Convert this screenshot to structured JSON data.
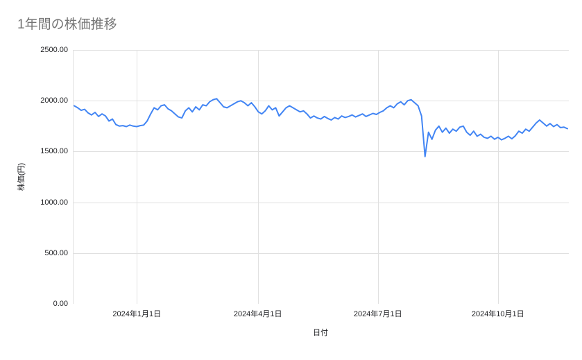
{
  "title": "1年間の株価推移",
  "colors": {
    "series": "#4285f4",
    "gridline": "#e0e0e0",
    "title_text": "#757575",
    "axis_text": "#202124"
  },
  "chart_data": {
    "type": "line",
    "title": "1年間の株価推移",
    "xlabel": "日付",
    "ylabel": "株価(円)",
    "ylim": [
      0,
      2500
    ],
    "grid": true,
    "legend": "none",
    "y_ticks": [
      {
        "value": 2500,
        "label": "2500.00"
      },
      {
        "value": 2000,
        "label": "2000.00"
      },
      {
        "value": 1500,
        "label": "1500.00"
      },
      {
        "value": 1000,
        "label": "1000.00"
      },
      {
        "value": 500,
        "label": "500.00"
      },
      {
        "value": 0,
        "label": "0.00"
      }
    ],
    "x_ticks": [
      {
        "pos": 0.129,
        "label": "2024年1月1日"
      },
      {
        "pos": 0.373,
        "label": "2024年4月1日"
      },
      {
        "pos": 0.615,
        "label": "2024年7月1日"
      },
      {
        "pos": 0.857,
        "label": "2024年10月1日"
      }
    ],
    "x_range_note": "daily stock price, approx Nov 2023 - Nov 2024, values evenly spaced",
    "values": [
      1950,
      1930,
      1905,
      1915,
      1880,
      1860,
      1885,
      1845,
      1870,
      1850,
      1800,
      1820,
      1765,
      1750,
      1755,
      1745,
      1760,
      1750,
      1745,
      1755,
      1760,
      1800,
      1870,
      1930,
      1910,
      1950,
      1960,
      1920,
      1900,
      1870,
      1840,
      1830,
      1900,
      1930,
      1890,
      1940,
      1910,
      1960,
      1950,
      1990,
      2010,
      2020,
      1980,
      1940,
      1930,
      1950,
      1970,
      1990,
      2000,
      1980,
      1950,
      1980,
      1940,
      1890,
      1870,
      1900,
      1950,
      1910,
      1930,
      1850,
      1890,
      1930,
      1950,
      1930,
      1910,
      1890,
      1900,
      1870,
      1830,
      1850,
      1830,
      1820,
      1845,
      1825,
      1810,
      1835,
      1820,
      1850,
      1835,
      1845,
      1860,
      1840,
      1855,
      1870,
      1845,
      1860,
      1875,
      1865,
      1885,
      1900,
      1930,
      1950,
      1930,
      1970,
      1990,
      1960,
      2000,
      2010,
      1980,
      1950,
      1850,
      1450,
      1690,
      1620,
      1710,
      1750,
      1690,
      1730,
      1680,
      1720,
      1700,
      1740,
      1750,
      1690,
      1660,
      1700,
      1650,
      1670,
      1640,
      1630,
      1650,
      1620,
      1640,
      1615,
      1630,
      1650,
      1625,
      1655,
      1700,
      1680,
      1720,
      1700,
      1740,
      1780,
      1810,
      1780,
      1750,
      1775,
      1745,
      1765,
      1735,
      1740,
      1725
    ]
  }
}
